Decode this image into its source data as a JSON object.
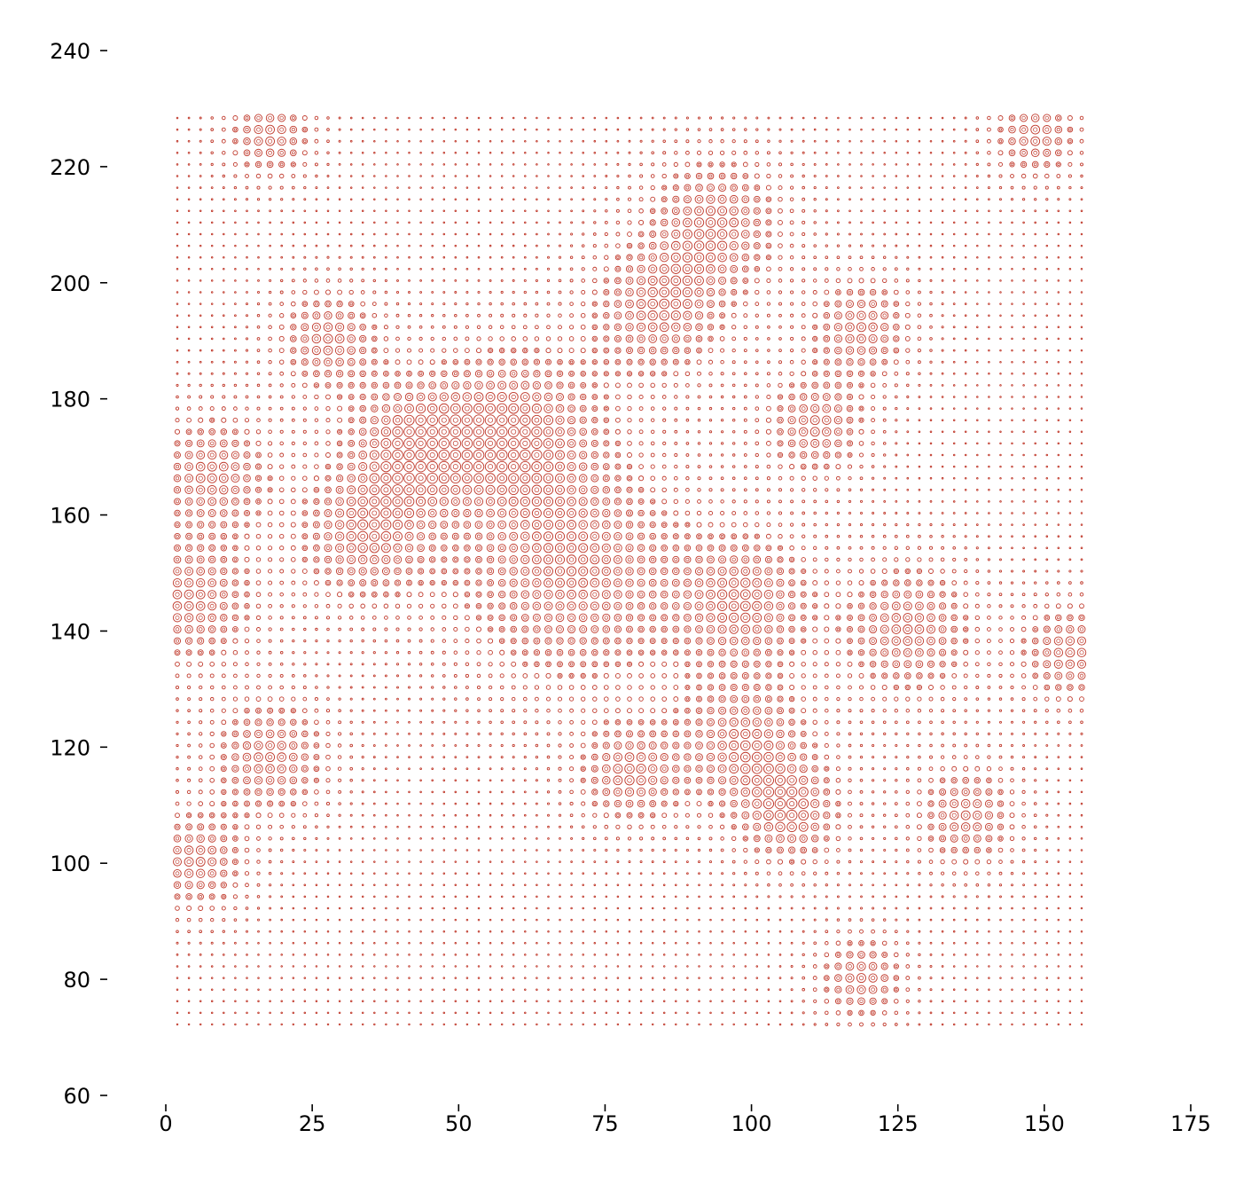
{
  "chart_data": {
    "type": "scatter",
    "title": "",
    "xlabel": "",
    "ylabel": "",
    "xlim": [
      -4,
      180
    ],
    "ylim": [
      60,
      240
    ],
    "x_ticks": [
      0,
      25,
      50,
      75,
      100,
      125,
      150,
      175
    ],
    "y_ticks": [
      60,
      80,
      100,
      120,
      140,
      160,
      180,
      200,
      220,
      240
    ],
    "grid": false,
    "legend": "none",
    "marker": "concentric-circle",
    "marker_color": "#c0392b",
    "points": {
      "x_start": 2,
      "x_end": 158,
      "x_step": 2,
      "y_start": 72,
      "y_end": 228,
      "y_step": 2,
      "value_pattern": "bright blobs at (8,167),(4,145),(20,118),(28,190),(42,172),(34,156),(70,150),(95,210),(120,192),(112,175),(138,108),(156,136),(120,80),(150,225)"
    }
  }
}
